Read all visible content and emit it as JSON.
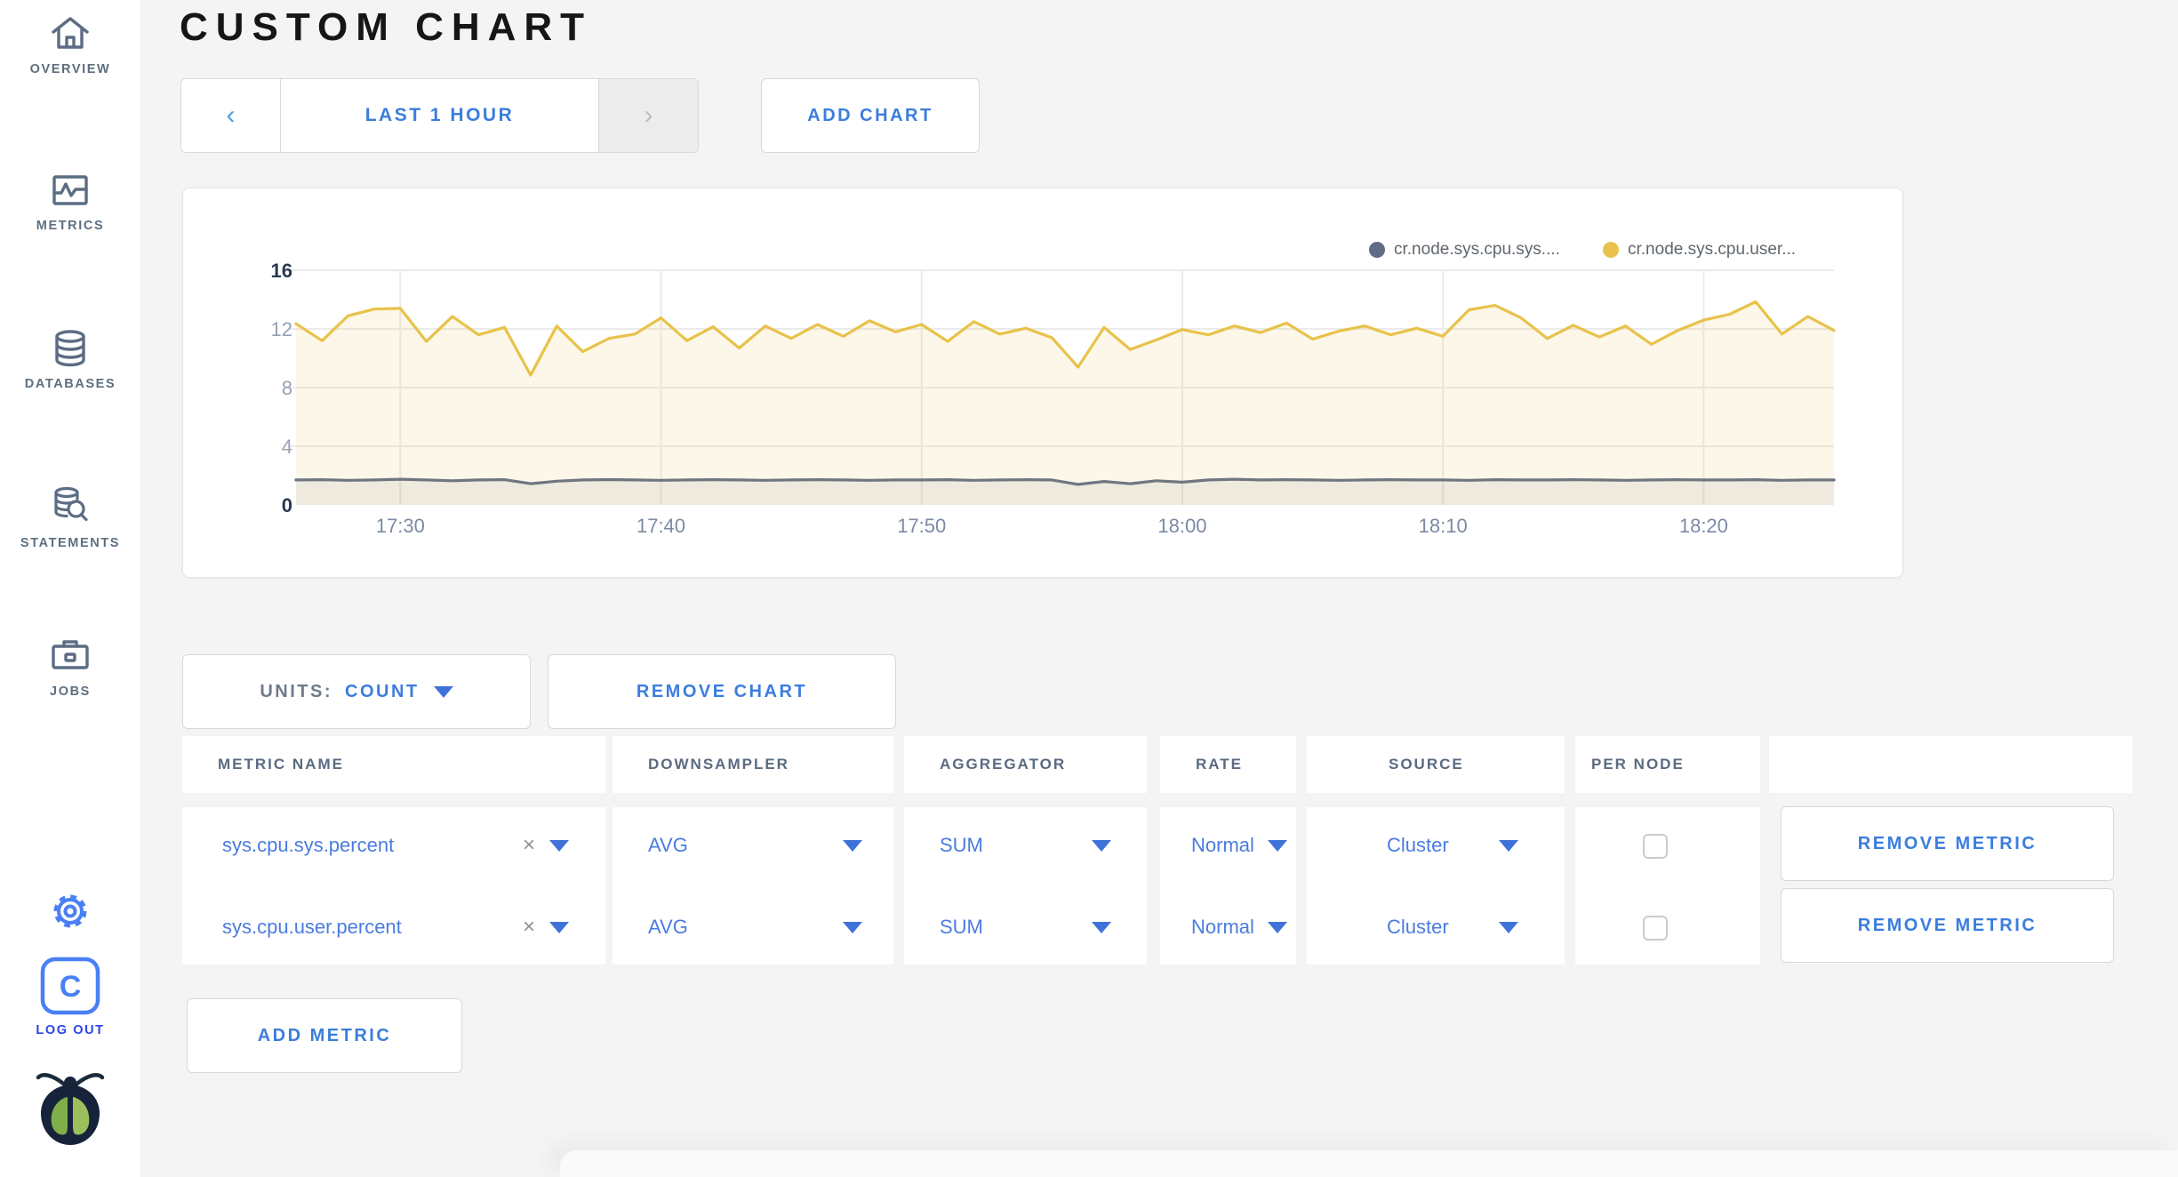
{
  "sidebar": {
    "items": [
      {
        "label": "OVERVIEW"
      },
      {
        "label": "METRICS"
      },
      {
        "label": "DATABASES"
      },
      {
        "label": "STATEMENTS"
      },
      {
        "label": "JOBS"
      }
    ],
    "logout_label": "LOG OUT"
  },
  "header": {
    "title": "CUSTOM CHART"
  },
  "toolbar": {
    "time_range": "LAST 1 HOUR",
    "prev_arrow": "‹",
    "next_arrow": "›",
    "add_chart": "ADD CHART"
  },
  "controls": {
    "units_label": "UNITS:",
    "units_value": "COUNT",
    "remove_chart": "REMOVE CHART",
    "add_metric": "ADD METRIC"
  },
  "colors": {
    "series_sys": "#5f6b87",
    "series_user": "#e8c24a",
    "grid": "#ebebeb",
    "axis_major": "#2a3852",
    "axis_minor": "#95a0b5",
    "x_labels": "#7c8aa5"
  },
  "chart_data": {
    "type": "line",
    "title": "",
    "xlabel": "",
    "ylabel": "",
    "ylim": [
      0,
      16
    ],
    "yticks": [
      0,
      4,
      8,
      12,
      16
    ],
    "xticks": [
      "17:30",
      "17:40",
      "17:50",
      "18:00",
      "18:10",
      "18:20"
    ],
    "grid": true,
    "legend_position": "top-right",
    "categories": [
      "17:26",
      "17:27",
      "17:28",
      "17:29",
      "17:30",
      "17:31",
      "17:32",
      "17:33",
      "17:34",
      "17:35",
      "17:36",
      "17:37",
      "17:38",
      "17:39",
      "17:40",
      "17:41",
      "17:42",
      "17:43",
      "17:44",
      "17:45",
      "17:46",
      "17:47",
      "17:48",
      "17:49",
      "17:50",
      "17:51",
      "17:52",
      "17:53",
      "17:54",
      "17:55",
      "17:56",
      "17:57",
      "17:58",
      "17:59",
      "18:00",
      "18:01",
      "18:02",
      "18:03",
      "18:04",
      "18:05",
      "18:06",
      "18:07",
      "18:08",
      "18:09",
      "18:10",
      "18:11",
      "18:12",
      "18:13",
      "18:14",
      "18:15",
      "18:16",
      "18:17",
      "18:18",
      "18:19",
      "18:20",
      "18:21",
      "18:22",
      "18:23",
      "18:24",
      "18:25"
    ],
    "series": [
      {
        "name": "cr.node.sys.cpu.sys....",
        "color": "#5f6b87",
        "values": [
          1.7,
          1.72,
          1.68,
          1.7,
          1.75,
          1.7,
          1.65,
          1.7,
          1.72,
          1.45,
          1.62,
          1.7,
          1.73,
          1.7,
          1.68,
          1.7,
          1.72,
          1.7,
          1.68,
          1.7,
          1.72,
          1.7,
          1.68,
          1.7,
          1.7,
          1.72,
          1.68,
          1.7,
          1.72,
          1.7,
          1.4,
          1.6,
          1.45,
          1.65,
          1.55,
          1.7,
          1.75,
          1.7,
          1.72,
          1.7,
          1.68,
          1.7,
          1.72,
          1.7,
          1.7,
          1.68,
          1.72,
          1.7,
          1.7,
          1.72,
          1.7,
          1.68,
          1.7,
          1.72,
          1.7,
          1.7,
          1.72,
          1.68,
          1.7,
          1.7
        ]
      },
      {
        "name": "cr.node.sys.cpu.user...",
        "color": "#e8c24a",
        "values": [
          12.35,
          11.2,
          12.9,
          13.35,
          13.4,
          11.15,
          12.85,
          11.6,
          12.1,
          8.85,
          12.2,
          10.45,
          11.35,
          11.65,
          12.75,
          11.2,
          12.15,
          10.7,
          12.2,
          11.35,
          12.3,
          11.5,
          12.55,
          11.8,
          12.3,
          11.15,
          12.5,
          11.65,
          12.05,
          11.4,
          9.4,
          12.1,
          10.6,
          11.25,
          11.95,
          11.6,
          12.2,
          11.75,
          12.4,
          11.3,
          11.85,
          12.2,
          11.6,
          12.05,
          11.5,
          13.3,
          13.6,
          12.75,
          11.35,
          12.25,
          11.45,
          12.2,
          10.95,
          11.9,
          12.6,
          13.0,
          13.85,
          11.65,
          12.85,
          11.9
        ]
      }
    ]
  },
  "legend": [
    {
      "label": "cr.node.sys.cpu.sys....",
      "color": "#5f6b87"
    },
    {
      "label": "cr.node.sys.cpu.user...",
      "color": "#e8c24a"
    }
  ],
  "table": {
    "columns": [
      {
        "label": "METRIC NAME"
      },
      {
        "label": "DOWNSAMPLER"
      },
      {
        "label": "AGGREGATOR"
      },
      {
        "label": "RATE"
      },
      {
        "label": "SOURCE"
      },
      {
        "label": "PER NODE"
      },
      {
        "label": ""
      }
    ],
    "rows": [
      {
        "metric": "sys.cpu.sys.percent",
        "downsampler": "AVG",
        "aggregator": "SUM",
        "rate": "Normal",
        "source": "Cluster",
        "per_node_checked": false,
        "remove_label": "REMOVE METRIC"
      },
      {
        "metric": "sys.cpu.user.percent",
        "downsampler": "AVG",
        "aggregator": "SUM",
        "rate": "Normal",
        "source": "Cluster",
        "per_node_checked": false,
        "remove_label": "REMOVE METRIC"
      }
    ]
  }
}
